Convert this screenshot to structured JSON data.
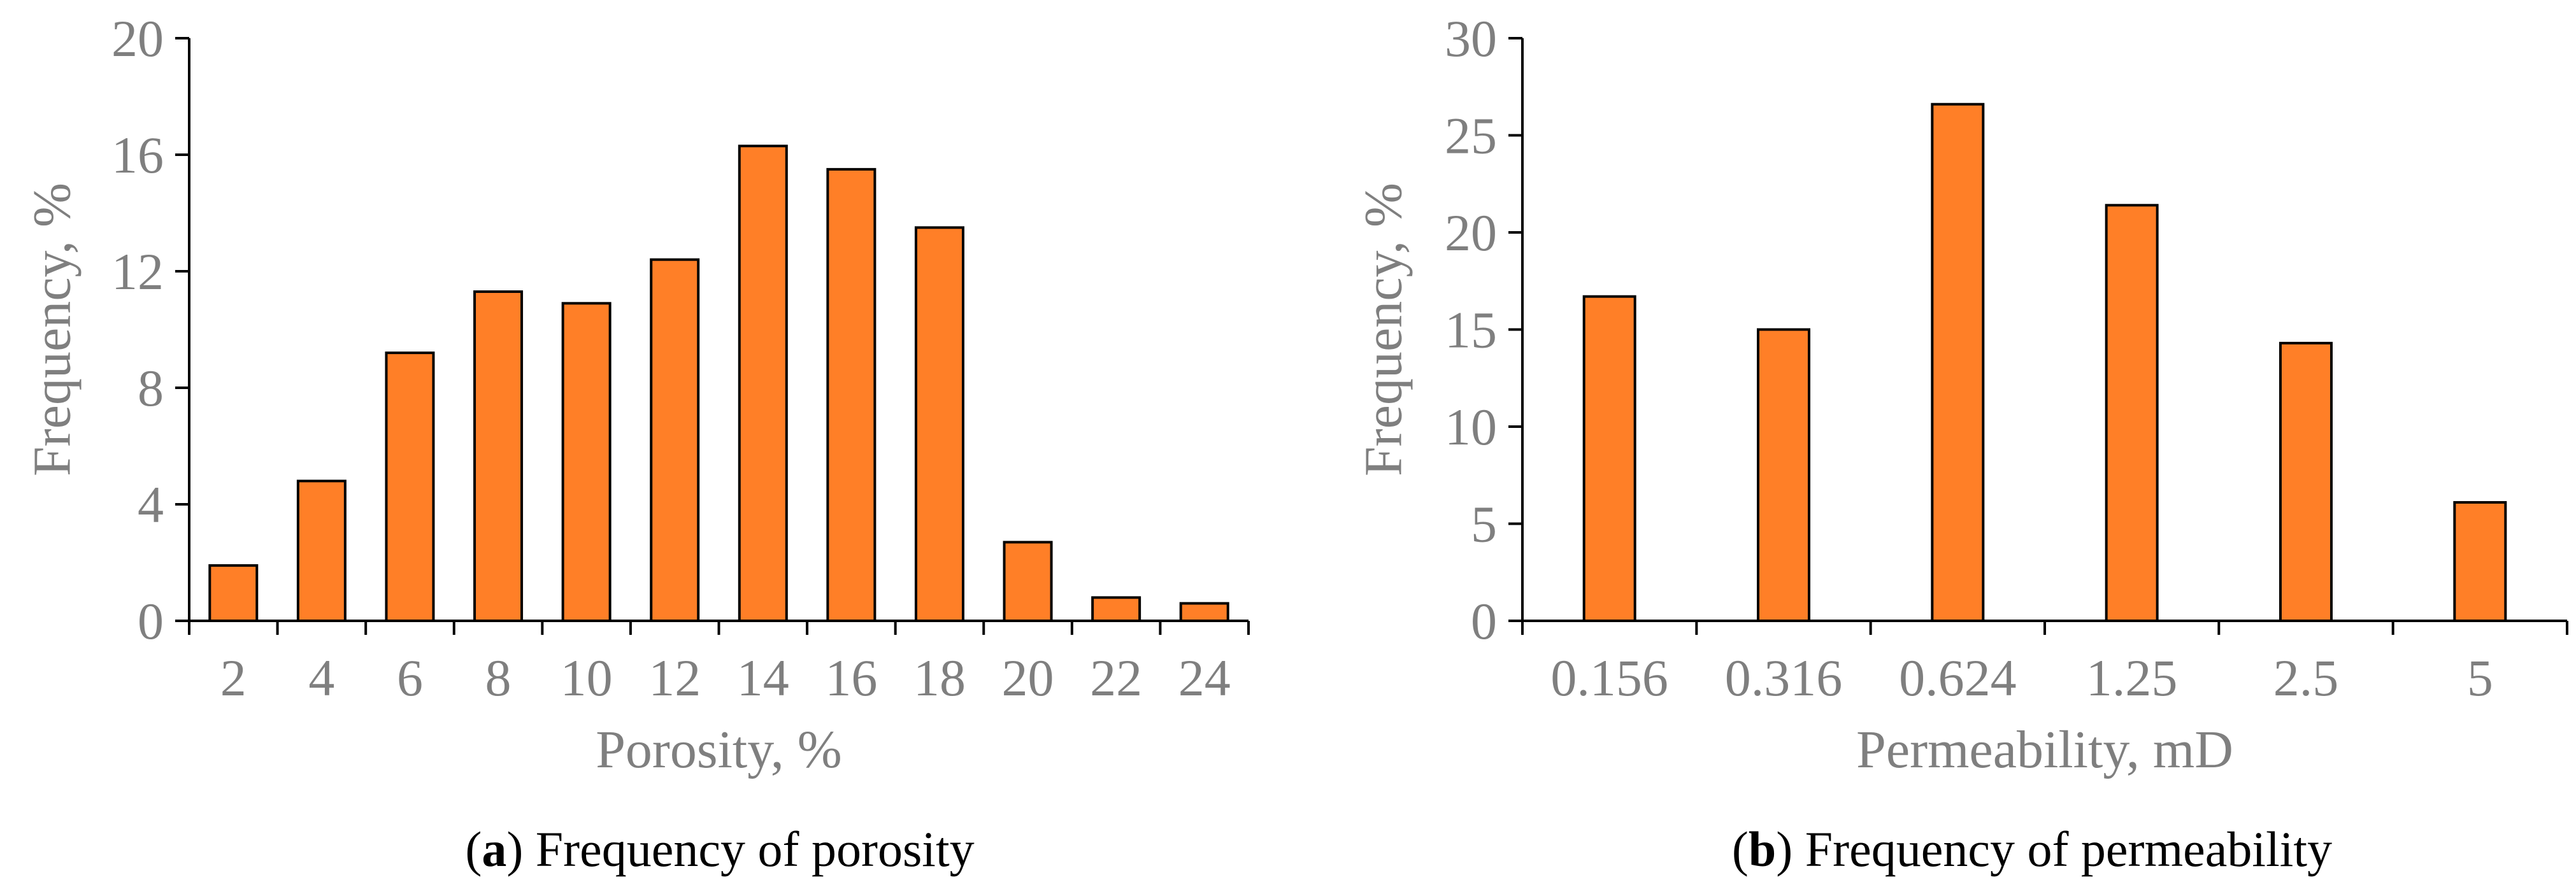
{
  "colors": {
    "bar_fill": "#FF7F27",
    "bar_stroke": "#000000",
    "axis": "#000000",
    "text": "#7f7f7f",
    "caption": "#000000"
  },
  "chart_data": [
    {
      "type": "bar",
      "title": "",
      "caption": {
        "letter": "a",
        "text": ") Frequency of porosity",
        "open": "("
      },
      "xlabel": "Porosity, %",
      "ylabel": "Frequency, %",
      "categories": [
        "2",
        "4",
        "6",
        "8",
        "10",
        "12",
        "14",
        "16",
        "18",
        "20",
        "22",
        "24"
      ],
      "values": [
        1.9,
        4.8,
        9.2,
        11.3,
        10.9,
        12.4,
        16.3,
        15.5,
        13.5,
        2.7,
        0.8,
        0.6
      ],
      "ylim": [
        0,
        20
      ],
      "yticks": [
        "0",
        "4",
        "8",
        "12",
        "16",
        "20"
      ],
      "grid": false
    },
    {
      "type": "bar",
      "title": "",
      "caption": {
        "letter": "b",
        "text": ") Frequency of permeability",
        "open": "("
      },
      "xlabel": "Permeability, mD",
      "ylabel": "Frequency, %",
      "categories": [
        "0.156",
        "0.316",
        "0.624",
        "1.25",
        "2.5",
        "5"
      ],
      "values": [
        16.7,
        15.0,
        26.6,
        21.4,
        14.3,
        6.1
      ],
      "ylim": [
        0,
        30
      ],
      "yticks": [
        "0",
        "5",
        "10",
        "15",
        "20",
        "25",
        "30"
      ],
      "grid": false
    }
  ]
}
